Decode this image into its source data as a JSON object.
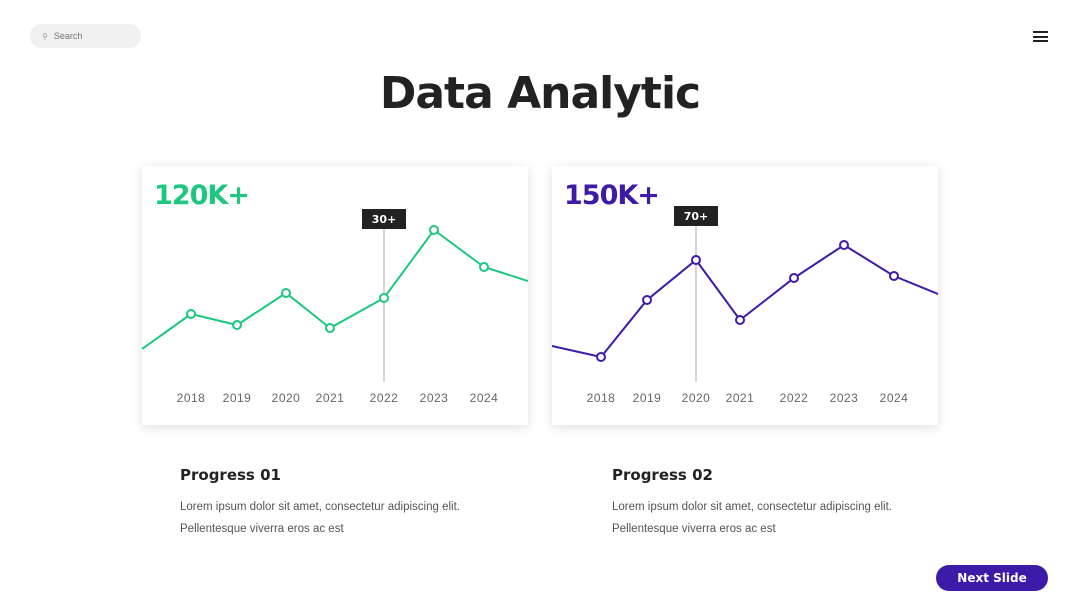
{
  "search": {
    "placeholder": "Search",
    "icon": "search-icon"
  },
  "menu_icon": "hamburger-icon",
  "title": "Data Analytic",
  "chart_data": [
    {
      "type": "line",
      "title": "120K+",
      "color": "#1dc77f",
      "categories": [
        "2018",
        "2019",
        "2020",
        "2021",
        "2022",
        "2023",
        "2024"
      ],
      "lead_in": 31,
      "values": [
        66,
        55,
        87,
        52,
        82,
        150,
        113
      ],
      "lead_out": 99,
      "highlight": {
        "category": "2022",
        "label": "30+"
      }
    },
    {
      "type": "line",
      "title": "150K+",
      "color": "#3d1aa8",
      "categories": [
        "2018",
        "2019",
        "2020",
        "2021",
        "2022",
        "2023",
        "2024"
      ],
      "lead_in": 34,
      "values": [
        23,
        80,
        120,
        60,
        102,
        135,
        104
      ],
      "lead_out": 86,
      "highlight": {
        "category": "2020",
        "label": "70+"
      }
    }
  ],
  "progress": [
    {
      "title": "Progress 01",
      "line1": "Lorem ipsum dolor sit amet, consectetur adipiscing elit.",
      "line2": "Pellentesque viverra eros ac est"
    },
    {
      "title": "Progress 02",
      "line1": "Lorem ipsum dolor sit amet, consectetur adipiscing elit.",
      "line2": "Pellentesque viverra eros ac est"
    }
  ],
  "next_button": "Next Slide"
}
